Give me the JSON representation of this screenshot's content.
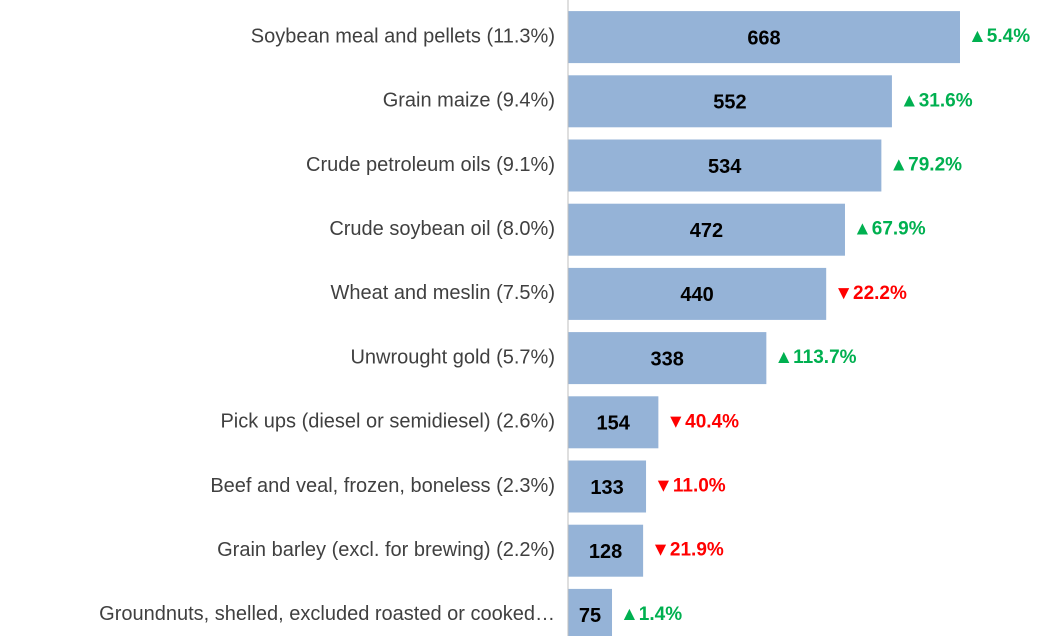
{
  "chart_data": {
    "type": "bar",
    "orientation": "horizontal",
    "categories": [
      "Soybean meal and pellets (11.3%)",
      "Grain maize (9.4%)",
      "Crude petroleum oils (9.1%)",
      "Crude soybean oil (8.0%)",
      "Wheat and meslin (7.5%)",
      "Unwrought gold (5.7%)",
      "Pick ups (diesel or semidiesel) (2.6%)",
      "Beef and veal, frozen, boneless (2.3%)",
      "Grain barley (excl. for brewing) (2.2%)",
      "Groundnuts, shelled, excluded roasted or cooked…"
    ],
    "values": [
      668,
      552,
      534,
      472,
      440,
      338,
      154,
      133,
      128,
      75
    ],
    "changes": [
      5.4,
      31.6,
      79.2,
      67.9,
      -22.2,
      113.7,
      -40.4,
      -11.0,
      -21.9,
      1.4
    ],
    "change_labels": [
      "▲5.4%",
      "▲31.6%",
      "▲79.2%",
      "▲67.9%",
      "▼22.2%",
      "▲113.7%",
      "▼40.4%",
      "▼11.0%",
      "▼21.9%",
      "▲1.4%"
    ],
    "color": "#95b3d7",
    "up_color": "#00b050",
    "down_color": "#ff0000",
    "axis_color": "#bfbfbf"
  }
}
